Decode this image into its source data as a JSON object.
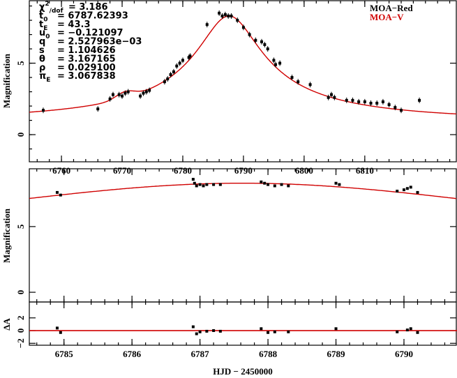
{
  "chart_data": [
    {
      "type": "scatter",
      "panel": "full light curve",
      "ylabel": "Magnification",
      "xlim": [
        6754.7,
        6825.2
      ],
      "ylim": [
        -1.9,
        9.37
      ],
      "xticks": [
        "6760",
        "6770",
        "6780",
        "6790",
        "6800",
        "6810"
      ],
      "xtick_values": [
        6760,
        6770,
        6780,
        6790,
        6800,
        6810
      ],
      "yticks": [
        "0",
        "5"
      ],
      "ytick_values": [
        0,
        5
      ],
      "legend": [
        {
          "name": "MOA−Red",
          "color": "#000000"
        },
        {
          "name": "MOA−V",
          "color": "#d00000"
        }
      ],
      "annotations": [
        {
          "sym": "χ",
          "sup": "2",
          "sub": "/dof",
          "val": "= 3.186"
        },
        {
          "sym": "t",
          "sub": "0",
          "val": "= 6787.62393"
        },
        {
          "sym": "t",
          "sub": "E",
          "val": "= 43.3"
        },
        {
          "sym": "u",
          "sub": "0",
          "val": "= −0.121097"
        },
        {
          "sym": "q",
          "val": "= 2.527963e−03"
        },
        {
          "sym": "s",
          "val": "= 1.104626"
        },
        {
          "sym": "θ",
          "val": "= 3.167165"
        },
        {
          "sym": "ρ",
          "val": "= 0.029100"
        },
        {
          "sym": "π",
          "sub": "E",
          "val": "= 3.067838"
        }
      ],
      "model": {
        "t0": 6787.62393,
        "tE": 43.3,
        "u0": 0.121097,
        "bump_t": 6770.5,
        "bump_amp": 0.45,
        "bump_w": 2.2,
        "color": "#d00000"
      },
      "points": [
        [
          6757,
          1.7
        ],
        [
          6766,
          1.8
        ],
        [
          6768,
          2.5
        ],
        [
          6768.5,
          2.8
        ],
        [
          6769.5,
          2.8
        ],
        [
          6770,
          2.7
        ],
        [
          6770.5,
          2.9
        ],
        [
          6771,
          3.0
        ],
        [
          6773,
          2.7
        ],
        [
          6773.5,
          2.9
        ],
        [
          6774,
          3.0
        ],
        [
          6774.5,
          3.1
        ],
        [
          6777,
          3.7
        ],
        [
          6777.5,
          3.9
        ],
        [
          6778,
          4.2
        ],
        [
          6778.5,
          4.4
        ],
        [
          6779,
          4.8
        ],
        [
          6779.5,
          5.0
        ],
        [
          6780,
          5.2
        ],
        [
          6781,
          5.4
        ],
        [
          6781.2,
          5.5
        ],
        [
          6784,
          7.7
        ],
        [
          6786,
          8.5
        ],
        [
          6786.5,
          8.3
        ],
        [
          6787,
          8.4
        ],
        [
          6787.5,
          8.3
        ],
        [
          6788,
          8.3
        ],
        [
          6789,
          8.0
        ],
        [
          6790,
          7.5
        ],
        [
          6791,
          7.0
        ],
        [
          6792,
          6.6
        ],
        [
          6793,
          6.5
        ],
        [
          6793.5,
          6.3
        ],
        [
          6794,
          6.0
        ],
        [
          6795,
          5.2
        ],
        [
          6795.3,
          4.9
        ],
        [
          6796,
          5.0
        ],
        [
          6798,
          4.0
        ],
        [
          6799,
          3.7
        ],
        [
          6801,
          3.5
        ],
        [
          6804,
          2.6
        ],
        [
          6804.5,
          2.8
        ],
        [
          6805,
          2.6
        ],
        [
          6807,
          2.4
        ],
        [
          6808,
          2.4
        ],
        [
          6809,
          2.3
        ],
        [
          6810,
          2.3
        ],
        [
          6811,
          2.2
        ],
        [
          6812,
          2.2
        ],
        [
          6813,
          2.3
        ],
        [
          6814,
          2.1
        ],
        [
          6815,
          1.9
        ],
        [
          6816,
          1.7
        ],
        [
          6819,
          2.4
        ]
      ]
    },
    {
      "type": "scatter",
      "panel": "peak zoom",
      "ylabel": "Magnification",
      "xlabel": "HJD − 2450000",
      "xlim": [
        6784.49,
        6790.78
      ],
      "ylim": [
        -0.74,
        9.4
      ],
      "xticks": [
        "6785",
        "6786",
        "6787",
        "6788",
        "6789",
        "6790"
      ],
      "xtick_values": [
        6785,
        6786,
        6787,
        6788,
        6789,
        6790
      ],
      "yticks": [
        "0",
        "5"
      ],
      "ytick_values": [
        0,
        5
      ],
      "points": [
        [
          6784.9,
          7.6
        ],
        [
          6784.95,
          7.4
        ],
        [
          6786.9,
          8.6
        ],
        [
          6786.92,
          8.3
        ],
        [
          6786.95,
          8.1
        ],
        [
          6787.0,
          8.2
        ],
        [
          6787.05,
          8.1
        ],
        [
          6787.1,
          8.2
        ],
        [
          6787.2,
          8.2
        ],
        [
          6787.3,
          8.2
        ],
        [
          6787.9,
          8.4
        ],
        [
          6787.95,
          8.3
        ],
        [
          6788.0,
          8.2
        ],
        [
          6788.1,
          8.1
        ],
        [
          6788.2,
          8.2
        ],
        [
          6788.3,
          8.1
        ],
        [
          6789.0,
          8.3
        ],
        [
          6789.05,
          8.2
        ],
        [
          6789.9,
          7.7
        ],
        [
          6790.0,
          7.8
        ],
        [
          6790.05,
          7.9
        ],
        [
          6790.1,
          8.0
        ],
        [
          6790.2,
          7.6
        ]
      ]
    },
    {
      "type": "scatter",
      "panel": "residuals",
      "ylabel": "ΔA",
      "ylim": [
        -2.3,
        4.5
      ],
      "yticks": [
        "−2",
        "0",
        "2"
      ],
      "ytick_values": [
        -2,
        0,
        2
      ],
      "points": [
        [
          6784.9,
          0.4
        ],
        [
          6784.95,
          -0.3
        ],
        [
          6786.9,
          0.6
        ],
        [
          6786.95,
          -0.5
        ],
        [
          6787.0,
          -0.2
        ],
        [
          6787.1,
          -0.1
        ],
        [
          6787.2,
          0
        ],
        [
          6787.3,
          -0.1
        ],
        [
          6787.9,
          0.3
        ],
        [
          6788.0,
          -0.3
        ],
        [
          6788.1,
          -0.2
        ],
        [
          6788.3,
          -0.2
        ],
        [
          6789.0,
          0.3
        ],
        [
          6789.9,
          -0.2
        ],
        [
          6790.05,
          0.1
        ],
        [
          6790.1,
          0.3
        ],
        [
          6790.2,
          -0.3
        ]
      ]
    }
  ]
}
